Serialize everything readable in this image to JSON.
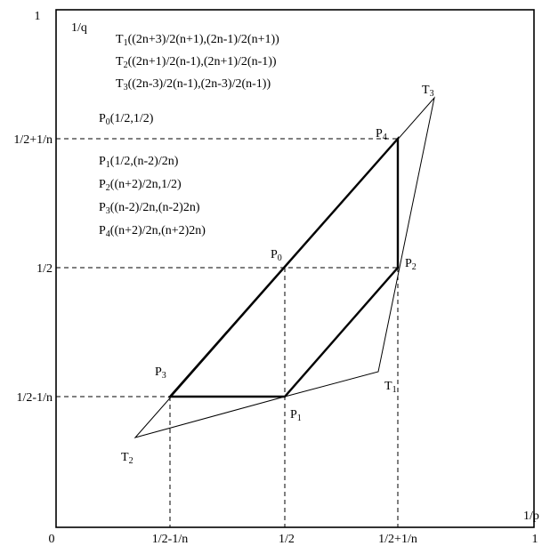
{
  "axes": {
    "origin_label": "0",
    "x_axis_label": "1/p",
    "y_axis_label": "1/q",
    "x_max_label": "1",
    "y_max_label": "1",
    "x_ticks": [
      "1/2-1/n",
      "1/2",
      "1/2+1/n"
    ],
    "y_ticks": [
      "1/2+1/n",
      "1/2",
      "1/2-1/n"
    ]
  },
  "legend": {
    "t1": {
      "base": "T",
      "sub": "1",
      "coords": "((2n+3)/2(n+1),(2n-1)/2(n+1))"
    },
    "t2": {
      "base": "T",
      "sub": "2",
      "coords": "((2n+1)/2(n-1),(2n+1)/2(n-1))"
    },
    "t3": {
      "base": "T",
      "sub": "3",
      "coords": "((2n-3)/2(n-1),(2n-3)/2(n-1))"
    },
    "p0": {
      "base": "P",
      "sub": "0",
      "coords": "(1/2,1/2)"
    },
    "p1": {
      "base": "P",
      "sub": "1",
      "coords": "(1/2,(n-2)/2n)"
    },
    "p2": {
      "base": "P",
      "sub": "2",
      "coords": "((n+2)/2n,1/2)"
    },
    "p3": {
      "base": "P",
      "sub": "3",
      "coords": "((n-2)/2n,(n-2)2n)"
    },
    "p4": {
      "base": "P",
      "sub": "4",
      "coords": "((n+2)/2n,(n+2)2n)"
    }
  },
  "point_labels": {
    "P0": {
      "base": "P",
      "sub": "0"
    },
    "P1": {
      "base": "P",
      "sub": "1"
    },
    "P2": {
      "base": "P",
      "sub": "2"
    },
    "P3": {
      "base": "P",
      "sub": "3"
    },
    "P4": {
      "base": "P",
      "sub": "4"
    },
    "T1": {
      "base": "T",
      "sub": "1"
    },
    "T2": {
      "base": "T",
      "sub": "2"
    },
    "T3": {
      "base": "T",
      "sub": "3"
    }
  }
}
